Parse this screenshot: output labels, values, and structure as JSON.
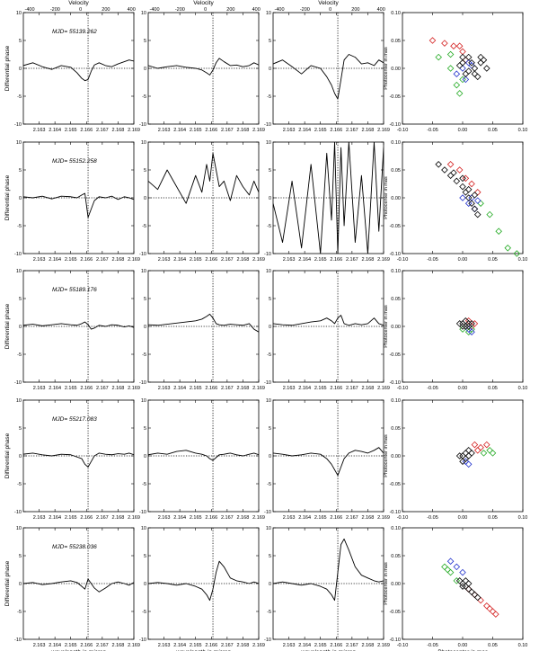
{
  "labels": {
    "velocity_title": "Velocity",
    "diff_phase_ylabel": "Differential phase",
    "wavelength_xlabel": "wavelength in micron",
    "photocenter_ylabel": "Photocenter in mas",
    "photocenter_xlabel": "Photocenter in mas"
  },
  "colors": {
    "red": "#d42020",
    "green": "#22aa22",
    "blue": "#2233cc",
    "black": "#000000"
  },
  "chart_data": {
    "type": "line",
    "phase_axes": {
      "xlim": [
        2.162,
        2.169
      ],
      "xticks": [
        "2.163",
        "2.164",
        "2.165",
        "2.166",
        "2.167",
        "2.168",
        "2.169"
      ],
      "xtick_values": [
        2.163,
        2.164,
        2.165,
        2.166,
        2.167,
        2.168,
        2.169
      ],
      "ylim": [
        -10,
        10
      ],
      "yticks": [
        -10,
        -5,
        0,
        5,
        10
      ],
      "line_center": 2.1661,
      "velocity_range": [
        -450,
        420
      ],
      "velocity_ticks": [
        -400,
        -200,
        0,
        200,
        400
      ],
      "x": [
        2.162,
        2.1626,
        2.1632,
        2.1638,
        2.1644,
        2.165,
        2.1654,
        2.1657,
        2.1659,
        2.1661,
        2.1663,
        2.1665,
        2.1668,
        2.1672,
        2.1676,
        2.168,
        2.1684,
        2.1687,
        2.169
      ]
    },
    "photocenter_axes": {
      "xlim": [
        -0.1,
        0.1
      ],
      "ylim": [
        -0.1,
        0.1
      ],
      "xticks": [
        "-0.10",
        "-0.05",
        "0.00",
        "0.05",
        "0.10"
      ],
      "yticks": [
        "-0.10",
        "-0.05",
        "0.00",
        "0.05",
        "0.10"
      ],
      "xtick_values": [
        -0.1,
        -0.05,
        0.0,
        0.05,
        0.1
      ],
      "ytick_values": [
        -0.1,
        -0.05,
        0.0,
        0.05,
        0.1
      ]
    },
    "rows": [
      {
        "mjd": "MJD= 55139.262",
        "baselines": [
          [
            0.5,
            1.0,
            0.3,
            -0.2,
            0.5,
            0.2,
            -0.8,
            -1.8,
            -2.2,
            -2.0,
            -0.5,
            0.6,
            1.0,
            0.5,
            0.3,
            0.8,
            1.2,
            1.5,
            1.3
          ],
          [
            0.5,
            0.0,
            0.3,
            0.5,
            0.2,
            0.0,
            -0.3,
            -0.8,
            -1.2,
            -0.3,
            1.0,
            1.8,
            1.2,
            0.5,
            0.6,
            0.3,
            0.5,
            1.0,
            0.6
          ],
          [
            0.8,
            1.5,
            0.3,
            -1.0,
            0.5,
            0.0,
            -1.5,
            -3.0,
            -4.5,
            -5.5,
            -2.0,
            1.5,
            2.5,
            2.0,
            0.8,
            1.0,
            0.5,
            1.5,
            1.0
          ]
        ],
        "photocenter": {
          "red": [
            [
              -0.05,
              0.05
            ],
            [
              -0.03,
              0.045
            ],
            [
              -0.015,
              0.04
            ],
            [
              0.0,
              0.03
            ],
            [
              0.005,
              0.015
            ],
            [
              -0.005,
              0.04
            ]
          ],
          "green": [
            [
              -0.04,
              0.02
            ],
            [
              -0.02,
              0.0
            ],
            [
              -0.01,
              -0.03
            ],
            [
              -0.005,
              -0.045
            ],
            [
              -0.02,
              0.025
            ],
            [
              0.0,
              -0.02
            ]
          ],
          "blue": [
            [
              0.0,
              0.0
            ],
            [
              0.01,
              0.01
            ],
            [
              -0.01,
              -0.01
            ],
            [
              0.005,
              -0.02
            ],
            [
              0.015,
              0.005
            ]
          ],
          "black": [
            [
              0.0,
              0.01
            ],
            [
              0.01,
              0.02
            ],
            [
              0.02,
              0.0
            ],
            [
              0.03,
              0.01
            ],
            [
              0.02,
              -0.01
            ],
            [
              0.01,
              -0.005
            ],
            [
              0.04,
              0.0
            ],
            [
              0.0,
              0.02
            ],
            [
              0.03,
              0.02
            ],
            [
              0.015,
              0.01
            ],
            [
              0.025,
              -0.015
            ],
            [
              -0.005,
              0.005
            ],
            [
              0.035,
              0.015
            ],
            [
              0.005,
              -0.01
            ]
          ]
        }
      },
      {
        "mjd": "MJD= 55152.258",
        "baselines": [
          [
            0.2,
            0.0,
            0.3,
            -0.2,
            0.3,
            0.2,
            0.0,
            0.5,
            0.8,
            -3.5,
            -2.0,
            -0.5,
            0.2,
            0.0,
            0.3,
            -0.3,
            0.2,
            0.0,
            -0.3
          ],
          [
            3.0,
            1.5,
            5.0,
            2.0,
            -1.0,
            4.0,
            1.0,
            6.0,
            3.0,
            8.0,
            5.0,
            2.0,
            3.0,
            -0.5,
            4.0,
            2.0,
            0.5,
            3.0,
            1.0
          ],
          [
            -1.0,
            -8.0,
            3.0,
            -9.0,
            6.0,
            -10.0,
            8.0,
            -4.0,
            10.0,
            -10.0,
            9.0,
            -5.0,
            10.0,
            -8.0,
            4.0,
            -10.0,
            10.0,
            -6.0,
            9.0
          ]
        ],
        "photocenter": {
          "red": [
            [
              -0.02,
              0.06
            ],
            [
              -0.005,
              0.05
            ],
            [
              0.005,
              0.035
            ],
            [
              0.015,
              0.025
            ],
            [
              0.025,
              0.01
            ]
          ],
          "green": [
            [
              0.03,
              -0.01
            ],
            [
              0.045,
              -0.03
            ],
            [
              0.06,
              -0.06
            ],
            [
              0.075,
              -0.09
            ],
            [
              0.09,
              -0.1
            ]
          ],
          "blue": [
            [
              0.0,
              0.0
            ],
            [
              0.01,
              -0.01
            ],
            [
              0.02,
              -0.02
            ],
            [
              0.015,
              0.0
            ],
            [
              0.025,
              -0.005
            ]
          ],
          "black": [
            [
              -0.04,
              0.06
            ],
            [
              -0.03,
              0.05
            ],
            [
              -0.02,
              0.04
            ],
            [
              -0.01,
              0.03
            ],
            [
              0.0,
              0.02
            ],
            [
              0.005,
              0.01
            ],
            [
              0.01,
              0.0
            ],
            [
              0.015,
              -0.01
            ],
            [
              0.02,
              -0.02
            ],
            [
              0.025,
              -0.03
            ],
            [
              -0.015,
              0.045
            ],
            [
              0.0,
              0.035
            ],
            [
              0.01,
              0.015
            ],
            [
              0.02,
              0.005
            ]
          ]
        }
      },
      {
        "mjd": "MJD= 55189.176",
        "baselines": [
          [
            0.2,
            0.4,
            0.1,
            0.3,
            0.5,
            0.3,
            0.2,
            0.5,
            0.8,
            0.3,
            -0.5,
            -0.3,
            0.2,
            0.0,
            0.3,
            0.2,
            -0.1,
            0.1,
            -0.2
          ],
          [
            0.3,
            0.2,
            0.4,
            0.6,
            0.8,
            1.0,
            1.3,
            1.8,
            2.2,
            1.5,
            0.5,
            0.3,
            0.2,
            0.4,
            0.3,
            0.2,
            0.5,
            -0.5,
            -1.0
          ],
          [
            0.5,
            0.3,
            0.2,
            0.5,
            0.8,
            1.0,
            1.5,
            1.0,
            0.5,
            1.5,
            2.0,
            0.5,
            0.2,
            0.5,
            0.3,
            0.5,
            1.5,
            0.5,
            0.2
          ]
        ],
        "photocenter": {
          "red": [
            [
              0.01,
              0.01
            ],
            [
              0.015,
              0.0
            ],
            [
              0.02,
              0.005
            ]
          ],
          "green": [
            [
              0.0,
              -0.005
            ],
            [
              0.01,
              -0.01
            ],
            [
              0.015,
              -0.005
            ]
          ],
          "blue": [
            [
              0.01,
              -0.005
            ],
            [
              0.015,
              -0.01
            ]
          ],
          "black": [
            [
              0.0,
              0.005
            ],
            [
              0.005,
              0.0
            ],
            [
              0.01,
              0.005
            ],
            [
              0.005,
              0.01
            ],
            [
              0.0,
              0.0
            ],
            [
              0.01,
              0.0
            ],
            [
              -0.005,
              0.005
            ],
            [
              0.015,
              0.005
            ]
          ]
        }
      },
      {
        "mjd": "MJD= 55217.083",
        "baselines": [
          [
            0.3,
            0.5,
            0.2,
            0.0,
            0.3,
            0.2,
            -0.2,
            -0.5,
            -1.5,
            -2.0,
            -1.0,
            0.0,
            0.5,
            0.3,
            0.2,
            0.4,
            0.3,
            0.5,
            0.2
          ],
          [
            0.2,
            0.5,
            0.3,
            0.8,
            1.0,
            0.5,
            0.3,
            0.0,
            -0.5,
            -0.8,
            -0.3,
            0.2,
            0.3,
            0.5,
            0.2,
            0.0,
            0.3,
            0.5,
            0.2
          ],
          [
            0.5,
            0.3,
            0.0,
            0.2,
            0.5,
            0.3,
            -0.5,
            -1.5,
            -2.5,
            -3.5,
            -2.0,
            -0.5,
            0.5,
            1.0,
            0.8,
            0.5,
            1.0,
            1.5,
            0.5
          ]
        ],
        "photocenter": {
          "red": [
            [
              0.02,
              0.02
            ],
            [
              0.03,
              0.015
            ],
            [
              0.04,
              0.02
            ],
            [
              0.025,
              0.01
            ]
          ],
          "green": [
            [
              0.035,
              0.005
            ],
            [
              0.045,
              0.01
            ],
            [
              0.05,
              0.005
            ]
          ],
          "blue": [
            [
              0.005,
              -0.01
            ],
            [
              0.01,
              -0.015
            ]
          ],
          "black": [
            [
              0.0,
              0.0
            ],
            [
              0.005,
              0.005
            ],
            [
              0.01,
              0.0
            ],
            [
              0.005,
              -0.005
            ],
            [
              0.0,
              -0.01
            ],
            [
              0.01,
              0.01
            ],
            [
              -0.005,
              0.0
            ],
            [
              0.015,
              0.005
            ]
          ]
        }
      },
      {
        "mjd": "MJD= 55238.036",
        "baselines": [
          [
            0.0,
            0.2,
            -0.2,
            0.0,
            0.3,
            0.5,
            0.2,
            -0.5,
            -1.0,
            0.8,
            0.0,
            -0.8,
            -1.5,
            -0.8,
            0.0,
            0.3,
            0.0,
            -0.3,
            0.2
          ],
          [
            0.0,
            0.2,
            0.0,
            -0.3,
            0.0,
            -0.5,
            -1.0,
            -2.0,
            -3.0,
            -1.0,
            2.0,
            4.0,
            3.0,
            1.0,
            0.5,
            0.3,
            0.0,
            0.3,
            0.0
          ],
          [
            0.0,
            0.3,
            0.0,
            -0.3,
            0.0,
            -0.5,
            -1.0,
            -2.0,
            -3.0,
            2.0,
            7.0,
            8.0,
            6.0,
            3.0,
            1.5,
            1.0,
            0.5,
            0.3,
            0.5
          ]
        ],
        "photocenter": {
          "red": [
            [
              0.01,
              -0.01
            ],
            [
              0.02,
              -0.02
            ],
            [
              0.03,
              -0.03
            ],
            [
              0.04,
              -0.04
            ],
            [
              0.05,
              -0.05
            ],
            [
              0.055,
              -0.055
            ],
            [
              0.045,
              -0.045
            ]
          ],
          "green": [
            [
              -0.03,
              0.03
            ],
            [
              -0.02,
              0.02
            ],
            [
              -0.01,
              0.005
            ],
            [
              -0.025,
              0.025
            ]
          ],
          "blue": [
            [
              -0.02,
              0.04
            ],
            [
              -0.01,
              0.03
            ],
            [
              0.0,
              0.02
            ]
          ],
          "black": [
            [
              0.0,
              0.0
            ],
            [
              0.005,
              -0.005
            ],
            [
              0.01,
              -0.01
            ],
            [
              0.015,
              -0.015
            ],
            [
              0.02,
              -0.02
            ],
            [
              -0.005,
              0.005
            ],
            [
              0.0,
              -0.005
            ],
            [
              0.01,
              0.0
            ],
            [
              0.025,
              -0.025
            ],
            [
              0.005,
              0.005
            ]
          ]
        }
      }
    ]
  }
}
